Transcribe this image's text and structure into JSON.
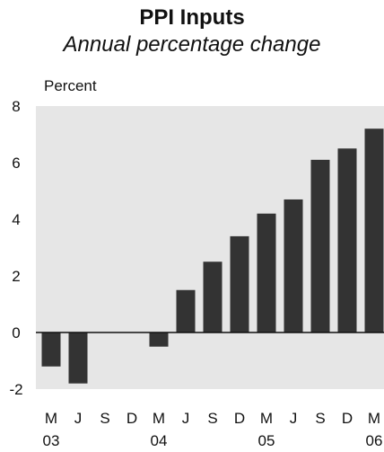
{
  "chart_data": {
    "type": "bar",
    "title": "PPI Inputs",
    "subtitle": "Annual percentage change",
    "ylabel": "Percent",
    "xlabel": "",
    "ylim": [
      -2,
      8
    ],
    "yticks": [
      8,
      6,
      4,
      2,
      0,
      -2
    ],
    "grid": false,
    "categories": [
      "M 03",
      "J 03",
      "S 03",
      "D 03",
      "M 04",
      "J 04",
      "S 04",
      "D 04",
      "M 05",
      "J 05",
      "S 05",
      "D 05",
      "M 06"
    ],
    "tick_months": [
      "M",
      "J",
      "S",
      "D",
      "M",
      "J",
      "S",
      "D",
      "M",
      "J",
      "S",
      "D",
      "M"
    ],
    "year_labels": [
      {
        "year": "03",
        "index": 0
      },
      {
        "year": "04",
        "index": 4
      },
      {
        "year": "05",
        "index": 8
      },
      {
        "year": "06",
        "index": 12
      }
    ],
    "values": [
      -1.2,
      -1.8,
      null,
      null,
      -0.5,
      1.5,
      2.5,
      3.4,
      4.2,
      4.7,
      6.1,
      6.5,
      7.2
    ],
    "colors": {
      "plot_background": "#e6e6e6",
      "bar": "#333333",
      "axis": "#111111"
    }
  }
}
